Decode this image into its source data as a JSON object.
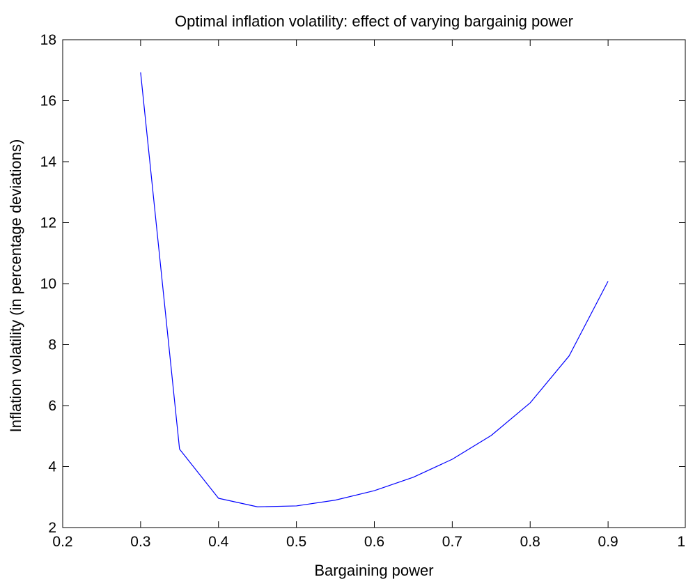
{
  "chart_data": {
    "type": "line",
    "title": "Optimal inflation volatility: effect of varying bargainig power",
    "xlabel": "Bargaining power",
    "ylabel": "Inflation volatility (in percentage deviations)",
    "xlim": [
      0.2,
      1
    ],
    "ylim": [
      2,
      18
    ],
    "xticks": [
      0.2,
      0.3,
      0.4,
      0.5,
      0.6,
      0.7,
      0.8,
      0.9,
      1
    ],
    "xtick_labels": [
      "0.2",
      "0.3",
      "0.4",
      "0.5",
      "0.6",
      "0.7",
      "0.8",
      "0.9",
      "1"
    ],
    "yticks": [
      2,
      4,
      6,
      8,
      10,
      12,
      14,
      16,
      18
    ],
    "ytick_labels": [
      "2",
      "4",
      "6",
      "8",
      "10",
      "12",
      "14",
      "16",
      "18"
    ],
    "grid": false,
    "series": [
      {
        "color": "#0000ff",
        "x": [
          0.3,
          0.35,
          0.4,
          0.45,
          0.5,
          0.55,
          0.6,
          0.65,
          0.7,
          0.75,
          0.8,
          0.85,
          0.9
        ],
        "y": [
          16.93,
          4.57,
          2.96,
          2.68,
          2.71,
          2.9,
          3.21,
          3.65,
          4.24,
          5.02,
          6.09,
          7.63,
          10.08
        ]
      }
    ]
  }
}
